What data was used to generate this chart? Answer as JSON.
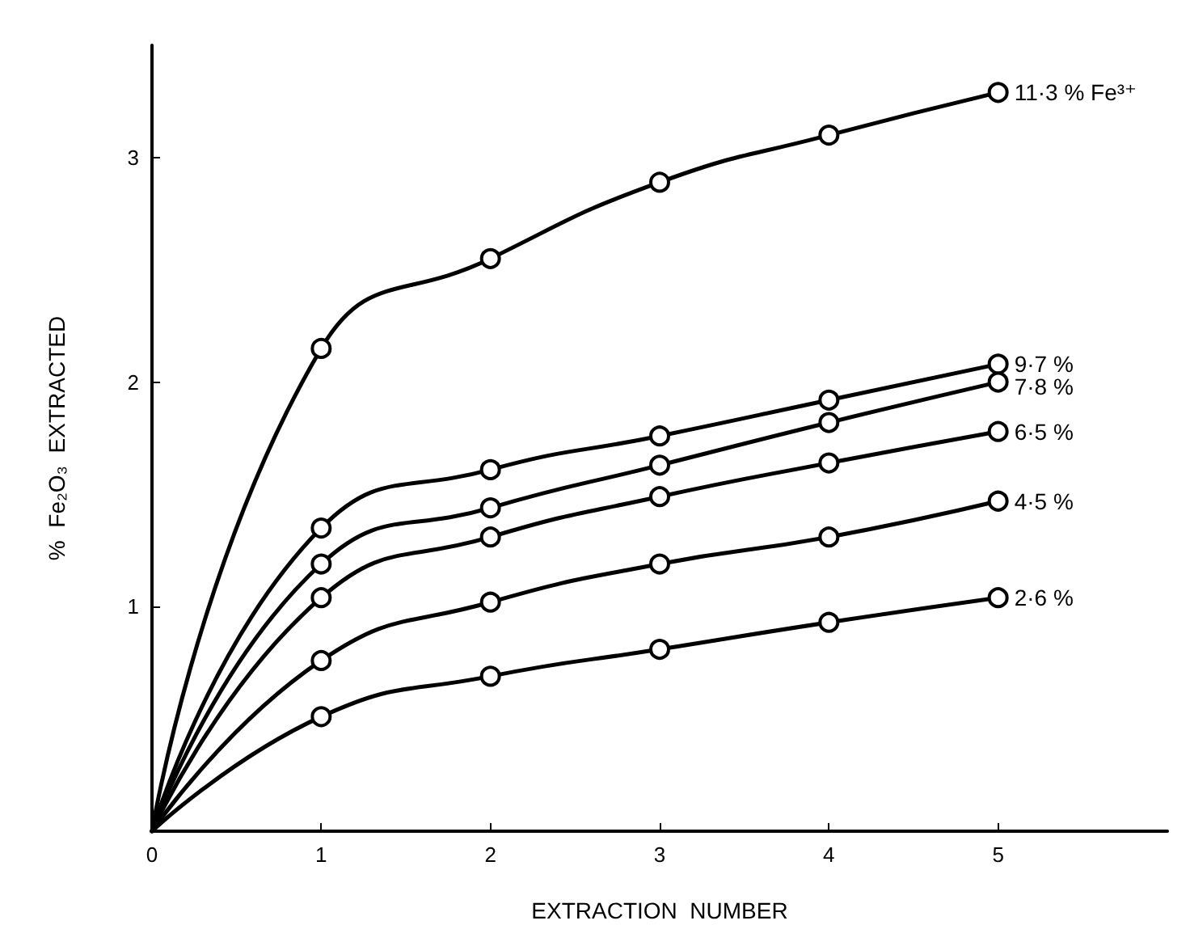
{
  "chart_data": {
    "type": "line",
    "xlabel": "EXTRACTION  NUMBER",
    "ylabel": "%  Fe₂O₃  EXTRACTED",
    "x": [
      0,
      1,
      2,
      3,
      4,
      5
    ],
    "series": [
      {
        "name": "11·3 % Fe³⁺",
        "color": "#000000",
        "values": [
          0,
          2.15,
          2.55,
          2.89,
          3.1,
          3.29
        ]
      },
      {
        "name": "9·7 %",
        "color": "#000000",
        "values": [
          0,
          1.35,
          1.61,
          1.76,
          1.92,
          2.08
        ]
      },
      {
        "name": "7·8 %",
        "color": "#000000",
        "values": [
          0,
          1.19,
          1.44,
          1.63,
          1.82,
          2.0
        ]
      },
      {
        "name": "6·5 %",
        "color": "#000000",
        "values": [
          0,
          1.04,
          1.31,
          1.49,
          1.64,
          1.78
        ]
      },
      {
        "name": "4·5 %",
        "color": "#000000",
        "values": [
          0,
          0.76,
          1.02,
          1.19,
          1.31,
          1.47
        ]
      },
      {
        "name": "2·6 %",
        "color": "#000000",
        "values": [
          0,
          0.51,
          0.69,
          0.81,
          0.93,
          1.04
        ]
      }
    ],
    "xlim": [
      0,
      6
    ],
    "xticks": [
      0,
      1,
      2,
      3,
      4,
      5
    ],
    "ylim": [
      0,
      3.5
    ],
    "yticks": [
      1,
      2,
      3
    ],
    "grid": false,
    "legend": false,
    "marker": "circle",
    "line_style": "solid"
  }
}
